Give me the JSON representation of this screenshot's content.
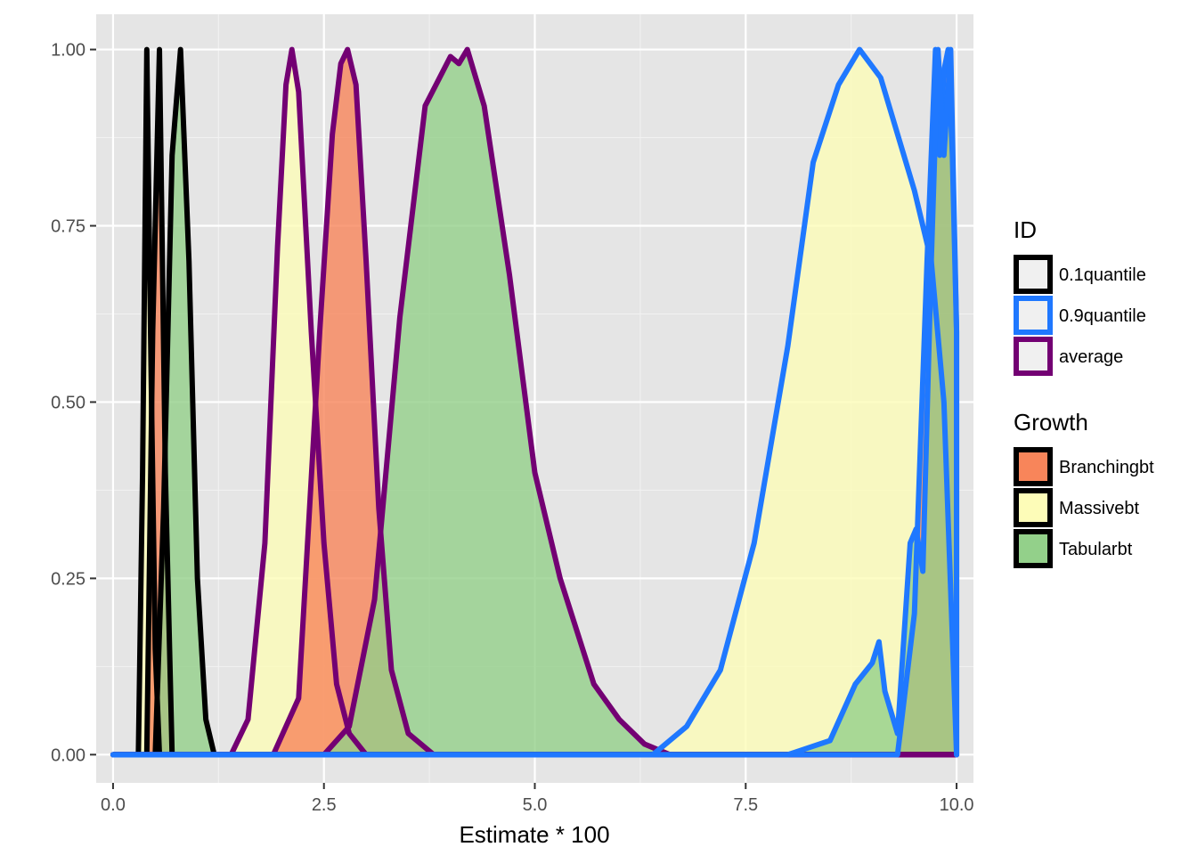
{
  "chart_data": {
    "type": "area",
    "title": "",
    "xlabel": "Estimate * 100",
    "ylabel": "",
    "xlim": [
      -0.2,
      10.2
    ],
    "ylim": [
      -0.04,
      1.05
    ],
    "x_ticks": [
      0,
      2.5,
      5,
      7.5,
      10
    ],
    "x_tick_labels": [
      "0.0",
      "2.5",
      "5.0",
      "7.5",
      "10.0"
    ],
    "y_ticks": [
      0,
      0.25,
      0.5,
      0.75,
      1
    ],
    "y_tick_labels": [
      "0.00",
      "0.25",
      "0.50",
      "0.75",
      "1.00"
    ],
    "grid": true,
    "legend_position": "right",
    "legends": [
      {
        "title": "ID",
        "entries": [
          {
            "label": "0.1quantile",
            "color": "#000000"
          },
          {
            "label": "0.9quantile",
            "color": "#1f78ff"
          },
          {
            "label": "average",
            "color": "#730073"
          }
        ]
      },
      {
        "title": "Growth",
        "entries": [
          {
            "label": "Branchingbt",
            "color": "#f8855a"
          },
          {
            "label": "Massivebt",
            "color": "#fdfcb8"
          },
          {
            "label": "Tabularbt",
            "color": "#93d08a"
          }
        ]
      }
    ],
    "series": [
      {
        "id": "0.1quantile",
        "growth": "Massivebt",
        "fill": "#fdfcb8",
        "line": "#000000",
        "x": [
          0.3,
          0.35,
          0.4,
          0.45,
          0.5,
          0.55
        ],
        "y": [
          0,
          0.4,
          1.0,
          0.55,
          0.15,
          0
        ]
      },
      {
        "id": "0.1quantile",
        "growth": "Branchingbt",
        "fill": "#f8855a",
        "line": "#000000",
        "x": [
          0.4,
          0.47,
          0.55,
          0.62,
          0.7
        ],
        "y": [
          0,
          0.6,
          1.0,
          0.4,
          0
        ]
      },
      {
        "id": "0.1quantile",
        "growth": "Tabularbt",
        "fill": "#93d08a",
        "line": "#000000",
        "x": [
          0.5,
          0.6,
          0.7,
          0.8,
          0.9,
          1.0,
          1.1,
          1.2
        ],
        "y": [
          0,
          0.35,
          0.85,
          1.0,
          0.7,
          0.25,
          0.05,
          0
        ]
      },
      {
        "id": "average",
        "growth": "Massivebt",
        "fill": "#fdfcb8",
        "line": "#730073",
        "x": [
          1.4,
          1.6,
          1.8,
          1.95,
          2.05,
          2.12,
          2.2,
          2.35,
          2.5,
          2.65,
          2.8,
          3.0
        ],
        "y": [
          0,
          0.05,
          0.3,
          0.72,
          0.95,
          1.0,
          0.94,
          0.6,
          0.3,
          0.1,
          0.03,
          0
        ]
      },
      {
        "id": "average",
        "growth": "Branchingbt",
        "fill": "#f8855a",
        "line": "#730073",
        "x": [
          1.9,
          2.2,
          2.45,
          2.6,
          2.7,
          2.78,
          2.88,
          3.0,
          3.15,
          3.3,
          3.5,
          3.8
        ],
        "y": [
          0,
          0.08,
          0.6,
          0.88,
          0.98,
          1.0,
          0.95,
          0.7,
          0.35,
          0.12,
          0.03,
          0
        ]
      },
      {
        "id": "average",
        "growth": "Tabularbt",
        "fill": "#93d08a",
        "line": "#730073",
        "x": [
          2.5,
          2.8,
          3.1,
          3.4,
          3.7,
          4.0,
          4.1,
          4.2,
          4.4,
          4.7,
          5.0,
          5.3,
          5.7,
          6.0,
          6.3,
          6.6
        ],
        "y": [
          0,
          0.04,
          0.22,
          0.62,
          0.92,
          0.99,
          0.98,
          1.0,
          0.92,
          0.68,
          0.4,
          0.25,
          0.1,
          0.05,
          0.015,
          0
        ]
      },
      {
        "id": "0.9quantile",
        "growth": "Massivebt",
        "fill": "#fdfcb8",
        "line": "#1f78ff",
        "x": [
          6.4,
          6.8,
          7.2,
          7.6,
          8.0,
          8.3,
          8.6,
          8.85,
          9.1,
          9.3,
          9.5,
          9.7,
          9.85,
          10.0
        ],
        "y": [
          0,
          0.04,
          0.12,
          0.3,
          0.58,
          0.84,
          0.95,
          1.0,
          0.96,
          0.88,
          0.8,
          0.7,
          0.5,
          0
        ]
      },
      {
        "id": "0.9quantile",
        "growth": "Branchingbt",
        "fill": "#f8855a",
        "line": "#1f78ff",
        "x": [
          9.3,
          9.5,
          9.65,
          9.75,
          9.8,
          9.85,
          9.9,
          9.95,
          10.0
        ],
        "y": [
          0,
          0.2,
          0.7,
          1.0,
          0.85,
          0.97,
          1.0,
          0.85,
          0.6
        ]
      },
      {
        "id": "0.9quantile",
        "growth": "Tabularbt",
        "fill": "#93d08a",
        "line": "#1f78ff",
        "x": [
          8.0,
          8.5,
          8.8,
          9.0,
          9.08,
          9.15,
          9.3,
          9.45,
          9.52,
          9.6,
          9.7,
          9.78,
          9.85,
          9.93,
          10.0
        ],
        "y": [
          0,
          0.02,
          0.1,
          0.13,
          0.16,
          0.09,
          0.03,
          0.3,
          0.32,
          0.26,
          0.7,
          1.0,
          0.85,
          1.0,
          0.6
        ]
      }
    ]
  }
}
